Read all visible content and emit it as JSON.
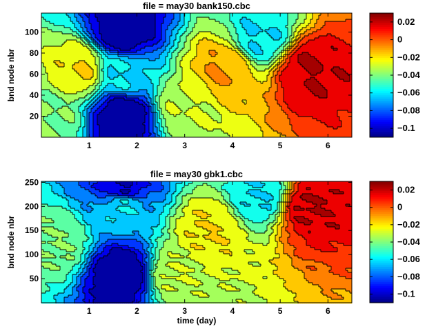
{
  "chart_data": [
    {
      "type": "heatmap",
      "title": "file =  may30 bank150.cbc",
      "xlabel": "",
      "ylabel": "bnd node nbr",
      "xlim": [
        0,
        6.5
      ],
      "ylim": [
        0,
        118
      ],
      "xticks": [
        1,
        2,
        3,
        4,
        5,
        6
      ],
      "yticks": [
        20,
        40,
        60,
        80,
        100
      ],
      "colormap": "jet",
      "color_range": [
        -0.11,
        0.03
      ],
      "colorbar_ticks": [
        0.02,
        0,
        -0.02,
        -0.04,
        -0.06,
        -0.08,
        -0.1
      ],
      "colorbar_tick_labels": [
        "0.02",
        "0",
        "−0.02",
        "−0.04",
        "−0.06",
        "−0.08",
        "−0.1"
      ],
      "features": [
        {
          "x": 1.7,
          "y": 20,
          "value": -0.11
        },
        {
          "x": 1.7,
          "y": 100,
          "value": -0.11
        },
        {
          "x": 1.7,
          "y": 60,
          "value": -0.06
        },
        {
          "x": 4.6,
          "y": 95,
          "value": -0.06
        },
        {
          "x": 5.6,
          "y": 65,
          "value": 0.02
        },
        {
          "x": 3.8,
          "y": 65,
          "value": -0.01
        },
        {
          "x": 0.8,
          "y": 65,
          "value": -0.02
        },
        {
          "x": 0.2,
          "y": 20,
          "value": -0.04
        },
        {
          "x": 3.0,
          "y": 30,
          "value": -0.03
        }
      ]
    },
    {
      "type": "heatmap",
      "title": "file =  may30 gbk1.cbc",
      "xlabel": "time  (day)",
      "ylabel": "bnd node nbr",
      "xlim": [
        0,
        6.5
      ],
      "ylim": [
        0,
        252
      ],
      "xticks": [
        1,
        2,
        3,
        4,
        5,
        6
      ],
      "yticks": [
        50,
        100,
        150,
        200,
        250
      ],
      "colormap": "jet",
      "color_range": [
        -0.11,
        0.03
      ],
      "colorbar_ticks": [
        0.02,
        0,
        -0.02,
        -0.04,
        -0.06,
        -0.08,
        -0.1
      ],
      "colorbar_tick_labels": [
        "0.02",
        "0",
        "−0.02",
        "−0.04",
        "−0.06",
        "−0.08",
        "−0.1"
      ],
      "features": [
        {
          "x": 1.7,
          "y": 60,
          "value": -0.11
        },
        {
          "x": 1.7,
          "y": 240,
          "value": -0.1
        },
        {
          "x": 1.7,
          "y": 200,
          "value": -0.06
        },
        {
          "x": 4.6,
          "y": 222,
          "value": -0.06
        },
        {
          "x": 5.6,
          "y": 200,
          "value": 0.02
        },
        {
          "x": 3.5,
          "y": 150,
          "value": -0.02
        },
        {
          "x": 0.3,
          "y": 120,
          "value": -0.04
        },
        {
          "x": 2.8,
          "y": 60,
          "value": -0.03
        }
      ]
    }
  ]
}
